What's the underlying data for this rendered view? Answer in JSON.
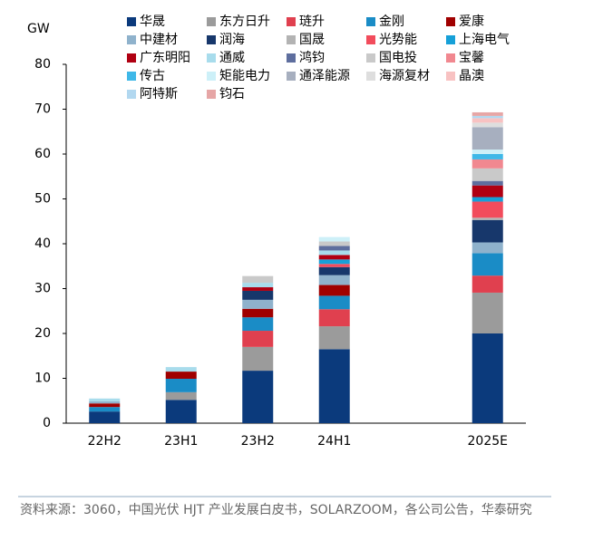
{
  "chart_data": {
    "type": "stacked_bar",
    "y_label": "GW",
    "categories": [
      "22H2",
      "23H1",
      "23H2",
      "24H1",
      null,
      "2025E"
    ],
    "ylim": [
      0,
      80
    ],
    "yticks": [
      0,
      10,
      20,
      30,
      40,
      50,
      60,
      70,
      80
    ],
    "series": [
      {
        "name": "华晟",
        "color": "#0b3a7c",
        "values": [
          2.6,
          5.2,
          11.7,
          16.5,
          null,
          20.0
        ]
      },
      {
        "name": "东方日升",
        "color": "#9b9b9b",
        "values": [
          null,
          1.7,
          5.3,
          5.1,
          null,
          9.1
        ]
      },
      {
        "name": "琏升",
        "color": "#e0404f",
        "values": [
          null,
          null,
          3.6,
          3.8,
          null,
          3.8
        ]
      },
      {
        "name": "金刚",
        "color": "#1a8cc6",
        "values": [
          1.0,
          3.0,
          3.0,
          3.0,
          null,
          5.0
        ]
      },
      {
        "name": "爱康",
        "color": "#a00000",
        "values": [
          0.8,
          1.6,
          1.9,
          2.4,
          null,
          null
        ]
      },
      {
        "name": "中建材",
        "color": "#8fb2cc",
        "values": [
          0.5,
          null,
          2.0,
          2.2,
          null,
          2.4
        ]
      },
      {
        "name": "润海",
        "color": "#17376b",
        "values": [
          null,
          null,
          2.0,
          1.8,
          null,
          5.0
        ]
      },
      {
        "name": "国晟",
        "color": "#b3b3b3",
        "values": [
          null,
          null,
          null,
          null,
          null,
          0.5
        ]
      },
      {
        "name": "光势能",
        "color": "#f24c5c",
        "values": [
          null,
          null,
          null,
          0.7,
          null,
          3.6
        ]
      },
      {
        "name": "上海电气",
        "color": "#16a0d8",
        "values": [
          null,
          null,
          null,
          1.0,
          null,
          1.0
        ]
      },
      {
        "name": "广东明阳",
        "color": "#b00012",
        "values": [
          null,
          null,
          0.8,
          1.0,
          null,
          2.6
        ]
      },
      {
        "name": "通威",
        "color": "#a8dcec",
        "values": [
          0.6,
          1.0,
          1.0,
          1.0,
          null,
          null
        ]
      },
      {
        "name": "鸿钧",
        "color": "#5e6e9e",
        "values": [
          null,
          null,
          null,
          1.0,
          null,
          1.0
        ]
      },
      {
        "name": "国电投",
        "color": "#c9c9c9",
        "values": [
          null,
          null,
          1.5,
          1.0,
          null,
          2.8
        ]
      },
      {
        "name": "宝馨",
        "color": "#f18890",
        "values": [
          null,
          null,
          null,
          null,
          null,
          2.0
        ]
      },
      {
        "name": "传古",
        "color": "#3fb8e8",
        "values": [
          null,
          null,
          null,
          null,
          null,
          1.2
        ]
      },
      {
        "name": "矩能电力",
        "color": "#cdf0f8",
        "values": [
          null,
          null,
          null,
          1.0,
          null,
          1.0
        ]
      },
      {
        "name": "通泽能源",
        "color": "#a7afbf",
        "values": [
          null,
          null,
          null,
          null,
          null,
          5.0
        ]
      },
      {
        "name": "海源复材",
        "color": "#dedede",
        "values": [
          null,
          null,
          null,
          null,
          null,
          1.0
        ]
      },
      {
        "name": "晶澳",
        "color": "#f8c2c2",
        "values": [
          null,
          null,
          null,
          null,
          null,
          1.0
        ]
      },
      {
        "name": "阿特斯",
        "color": "#b2d8f0",
        "values": [
          null,
          null,
          null,
          null,
          null,
          0.5
        ]
      },
      {
        "name": "钧石",
        "color": "#e6a6a6",
        "values": [
          null,
          null,
          null,
          null,
          null,
          0.8
        ]
      }
    ]
  },
  "source": "资料来源：3060，中国光伏 HJT 产业发展白皮书，SOLARZOOM，各公司公告，华泰研究"
}
